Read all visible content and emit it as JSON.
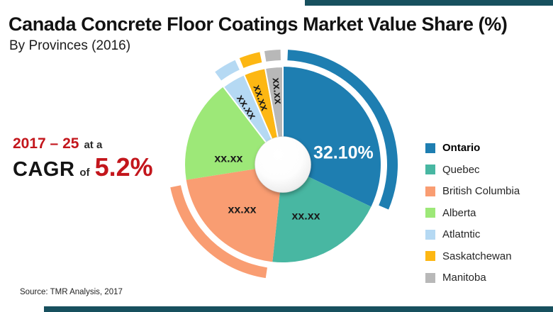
{
  "page": {
    "title": "Canada Concrete Floor Coatings Market Value Share (%)",
    "subtitle": "By Provinces (2016)",
    "source": "Source: TMR Analysis, 2017",
    "accent_bar_color": "#17505e",
    "red_accent": "#c3161c"
  },
  "cagr": {
    "range": "2017 – 25",
    "range_suffix": "at a",
    "metric": "CAGR",
    "of_word": "of",
    "value": "5.2%"
  },
  "chart_data": {
    "type": "pie",
    "donut": true,
    "title": "Canada Concrete Floor Coatings Market Value Share (%)",
    "subtitle": "By Provinces (2016)",
    "legend_position": "right",
    "start_angle_deg": 0,
    "note": "Only Ontario share is disclosed; other slices show xx.xx placeholders. pct_estimated derived from slice angles.",
    "slices": [
      {
        "name": "Ontario",
        "display_label": "32.10%",
        "pct_estimated": 32.1,
        "color": "#1e7eb1",
        "outer_arc": true,
        "label_hint": {
          "angle": 79,
          "r": 87,
          "rotate": 0,
          "color": "#ffffff",
          "size": 25
        }
      },
      {
        "name": "Quebec",
        "display_label": "xx.xx",
        "pct_estimated": 19.6,
        "color": "#48b7a2",
        "outer_arc": false,
        "label_hint": {
          "angle": 156,
          "r": 80,
          "rotate": 0,
          "color": "#1a1a1a",
          "size": 16
        }
      },
      {
        "name": "British Columbia",
        "display_label": "xx.xx",
        "pct_estimated": 20.8,
        "color": "#f99d72",
        "outer_arc": true,
        "label_hint": {
          "angle": 222,
          "r": 86,
          "rotate": 0,
          "color": "#1a1a1a",
          "size": 16
        }
      },
      {
        "name": "Alberta",
        "display_label": "xx.xx",
        "pct_estimated": 17.1,
        "color": "#9de878",
        "outer_arc": false,
        "label_hint": {
          "angle": 276,
          "r": 77,
          "rotate": 0,
          "color": "#1a1a1a",
          "size": 16
        }
      },
      {
        "name": "Atlatntic",
        "display_label": "xx.xx",
        "pct_estimated": 3.9,
        "color": "#b5d9f3",
        "outer_arc": true,
        "label_hint": {
          "angle": 327.5,
          "r": 96,
          "rotate": 57,
          "color": "#1a1a1a",
          "size": 15
        }
      },
      {
        "name": "Saskatchewan",
        "display_label": "xx.xx",
        "pct_estimated": 3.6,
        "color": "#fdb713",
        "outer_arc": true,
        "label_hint": {
          "angle": 341.5,
          "r": 99,
          "rotate": 71,
          "color": "#1a1a1a",
          "size": 15
        }
      },
      {
        "name": "Manitoba",
        "display_label": "xx.xx",
        "pct_estimated": 2.9,
        "color": "#b8b8b8",
        "outer_arc": true,
        "label_hint": {
          "angle": 355.5,
          "r": 104,
          "rotate": 85,
          "color": "#1a1a1a",
          "size": 15
        }
      }
    ]
  }
}
